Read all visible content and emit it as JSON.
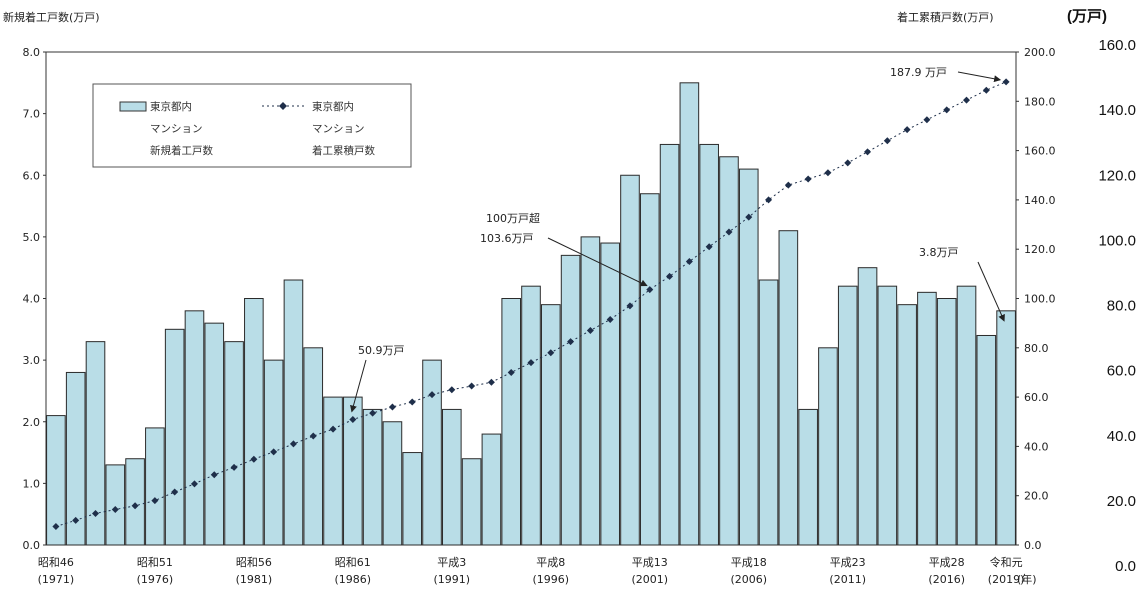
{
  "chart_data": {
    "type": "bar+line",
    "left_axis_title": "新規着工戸数(万戸)",
    "right_axis_title": "着工累積戸数(万戸)",
    "outer_axis_title": "(万戸)",
    "x_unit": "(年)",
    "left_ylim": [
      0,
      8
    ],
    "right_ylim": [
      0,
      200
    ],
    "left_ticks": [
      "0.0",
      "1.0",
      "2.0",
      "3.0",
      "4.0",
      "5.0",
      "6.0",
      "7.0",
      "8.0"
    ],
    "right_ticks": [
      "0.0",
      "20.0",
      "40.0",
      "60.0",
      "80.0",
      "100.0",
      "120.0",
      "140.0",
      "160.0",
      "180.0",
      "200.0"
    ],
    "outer_ticks": [
      "0.0",
      "20.0",
      "40.0",
      "60.0",
      "80.0",
      "100.0",
      "120.0",
      "140.0",
      "160.0"
    ],
    "x_tick_labels": [
      {
        "i": 0,
        "era": "昭和46",
        "year": "(1971)"
      },
      {
        "i": 5,
        "era": "昭和51",
        "year": "(1976)"
      },
      {
        "i": 10,
        "era": "昭和56",
        "year": "(1981)"
      },
      {
        "i": 15,
        "era": "昭和61",
        "year": "(1986)"
      },
      {
        "i": 20,
        "era": "平成3",
        "year": "(1991)"
      },
      {
        "i": 25,
        "era": "平成8",
        "year": "(1996)"
      },
      {
        "i": 30,
        "era": "平成13",
        "year": "(2001)"
      },
      {
        "i": 35,
        "era": "平成18",
        "year": "(2006)"
      },
      {
        "i": 40,
        "era": "平成23",
        "year": "(2011)"
      },
      {
        "i": 45,
        "era": "平成28",
        "year": "(2016)"
      },
      {
        "i": 48,
        "era": "令和元",
        "year": "(2019)"
      }
    ],
    "years": [
      1971,
      1972,
      1973,
      1974,
      1975,
      1976,
      1977,
      1978,
      1979,
      1980,
      1981,
      1982,
      1983,
      1984,
      1985,
      1986,
      1987,
      1988,
      1989,
      1990,
      1991,
      1992,
      1993,
      1994,
      1995,
      1996,
      1997,
      1998,
      1999,
      2000,
      2001,
      2002,
      2003,
      2004,
      2005,
      2006,
      2007,
      2008,
      2009,
      2010,
      2011,
      2012,
      2013,
      2014,
      2015,
      2016,
      2017,
      2018,
      2019
    ],
    "series": [
      {
        "name": "東京都内 マンション 新規着工戸数",
        "kind": "bar",
        "axis": "left",
        "color": "#b9dde7",
        "values": [
          2.1,
          2.8,
          3.3,
          1.3,
          1.4,
          1.9,
          3.5,
          3.8,
          3.6,
          3.3,
          4.0,
          3.0,
          4.3,
          3.2,
          2.4,
          2.4,
          2.2,
          2.0,
          1.5,
          3.0,
          2.2,
          1.4,
          1.8,
          4.0,
          4.2,
          3.9,
          4.7,
          5.0,
          4.9,
          6.0,
          5.7,
          6.5,
          7.5,
          6.5,
          6.3,
          6.1,
          4.3,
          5.1,
          2.2,
          3.2,
          4.2,
          4.5,
          4.2,
          3.9,
          4.1,
          4.0,
          4.2,
          3.4,
          3.8
        ]
      },
      {
        "name": "東京都内 マンション 着工累積戸数",
        "kind": "line",
        "axis": "right",
        "color": "#1f2f4a",
        "values": [
          7.5,
          10.0,
          12.8,
          14.4,
          15.9,
          18.0,
          21.5,
          24.8,
          28.5,
          31.5,
          34.8,
          37.8,
          41.0,
          44.2,
          47.0,
          50.9,
          53.5,
          56.0,
          58.0,
          61.0,
          63.0,
          64.5,
          66.0,
          70.0,
          74.0,
          78.0,
          82.5,
          87.0,
          91.5,
          97.0,
          103.6,
          109.0,
          115.0,
          121.0,
          127.0,
          133.0,
          140.0,
          146.0,
          148.5,
          151.0,
          155.0,
          159.5,
          164.0,
          168.5,
          172.5,
          176.5,
          180.5,
          184.5,
          187.9
        ]
      }
    ],
    "legend": {
      "bar_lines": [
        "東京都内",
        "マンション",
        "新規着工戸数"
      ],
      "line_lines": [
        "東京都内",
        "マンション",
        "着工累積戸数"
      ],
      "position": "top-left"
    },
    "annotations": [
      {
        "lines": [
          "50.9万戸"
        ],
        "target_index": 15
      },
      {
        "lines": [
          "100万戸超",
          "103.6万戸"
        ],
        "target_index": 30
      },
      {
        "lines": [
          "187.9 万戸"
        ],
        "target_index": 48
      },
      {
        "lines": [
          "3.8万戸"
        ],
        "target_index": 48
      }
    ]
  }
}
